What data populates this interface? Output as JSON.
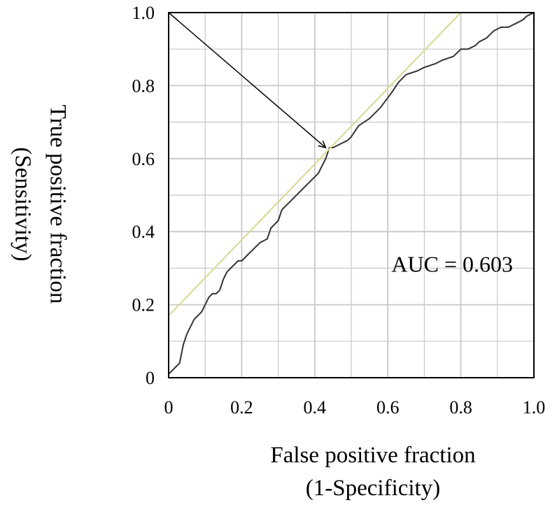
{
  "chart_data": {
    "type": "line",
    "xlabel_lines": [
      "False positive fraction",
      "(1-Specificity)"
    ],
    "ylabel_lines": [
      "True positive fraction",
      "(Sensitivity)"
    ],
    "xlim": [
      0,
      1
    ],
    "ylim": [
      0,
      1
    ],
    "grid": true,
    "x_tick_labels": [
      "0",
      "0.2",
      "0.4",
      "0.6",
      "0.8",
      "1.0"
    ],
    "y_tick_labels": [
      "0",
      "0.2",
      "0.4",
      "0.6",
      "0.8",
      "1.0"
    ],
    "annotation": {
      "text": "AUC = 0.603",
      "x": 0.61,
      "y": 0.3
    },
    "arrow": {
      "from": [
        0,
        1
      ],
      "to": [
        0.43,
        0.63
      ]
    },
    "colors": {
      "roc": "#333333",
      "reference": "#d8d890",
      "grid": "#c8c8c8",
      "arrow": "#000000"
    },
    "series": [
      {
        "role": "roc",
        "x": [
          0,
          0.01,
          0.03,
          0.04,
          0.05,
          0.06,
          0.07,
          0.08,
          0.09,
          0.1,
          0.11,
          0.12,
          0.13,
          0.14,
          0.15,
          0.16,
          0.17,
          0.18,
          0.19,
          0.2,
          0.21,
          0.22,
          0.23,
          0.25,
          0.27,
          0.28,
          0.29,
          0.3,
          0.31,
          0.32,
          0.33,
          0.34,
          0.35,
          0.37,
          0.39,
          0.41,
          0.42,
          0.43,
          0.44,
          0.45,
          0.47,
          0.49,
          0.5,
          0.52,
          0.55,
          0.58,
          0.61,
          0.63,
          0.65,
          0.68,
          0.7,
          0.73,
          0.75,
          0.78,
          0.8,
          0.82,
          0.84,
          0.85,
          0.87,
          0.88,
          0.89,
          0.91,
          0.93,
          0.95,
          0.97,
          0.98,
          1.0
        ],
        "y": [
          0.01,
          0.02,
          0.04,
          0.09,
          0.12,
          0.14,
          0.16,
          0.17,
          0.18,
          0.2,
          0.22,
          0.23,
          0.23,
          0.24,
          0.27,
          0.29,
          0.3,
          0.31,
          0.32,
          0.32,
          0.33,
          0.34,
          0.35,
          0.37,
          0.38,
          0.41,
          0.42,
          0.43,
          0.46,
          0.47,
          0.48,
          0.49,
          0.5,
          0.52,
          0.54,
          0.56,
          0.58,
          0.6,
          0.63,
          0.63,
          0.64,
          0.65,
          0.66,
          0.69,
          0.71,
          0.74,
          0.78,
          0.81,
          0.83,
          0.84,
          0.85,
          0.86,
          0.87,
          0.88,
          0.9,
          0.9,
          0.91,
          0.92,
          0.93,
          0.94,
          0.95,
          0.96,
          0.96,
          0.97,
          0.98,
          0.99,
          1.0
        ]
      },
      {
        "role": "reference",
        "x": [
          0,
          0.8
        ],
        "y": [
          0.17,
          1.0
        ]
      }
    ]
  }
}
